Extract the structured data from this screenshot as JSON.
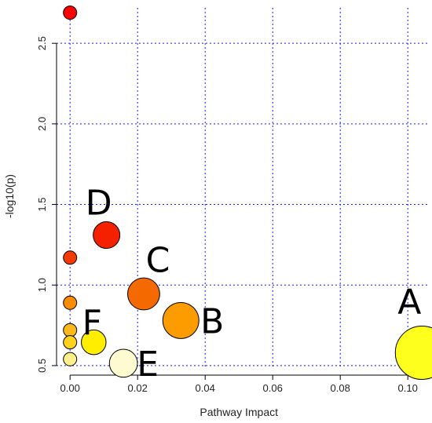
{
  "chart_data": {
    "type": "scatter",
    "xlabel": "Pathway Impact",
    "ylabel": "-log10(p)",
    "xlim": [
      -0.004,
      0.106
    ],
    "ylim": [
      0.48,
      2.72
    ],
    "x_ticks": [
      0.0,
      0.02,
      0.04,
      0.06,
      0.08,
      0.1
    ],
    "x_tick_labels": [
      "0.00",
      "0.02",
      "0.04",
      "0.06",
      "0.08",
      "0.10"
    ],
    "y_ticks": [
      0.5,
      1.0,
      1.5,
      2.0,
      2.5
    ],
    "y_tick_labels": [
      "0.5",
      "1.0",
      "1.5",
      "2.0",
      "2.5"
    ],
    "grid": true,
    "points": [
      {
        "label": "",
        "x": 0.0,
        "y": 2.69,
        "size": 1.0,
        "color": "#ff0000"
      },
      {
        "label": "",
        "x": 0.0,
        "y": 1.17,
        "size": 1.0,
        "color": "#f43a00"
      },
      {
        "label": "",
        "x": 0.0,
        "y": 0.89,
        "size": 1.0,
        "color": "#f98c00"
      },
      {
        "label": "",
        "x": 0.0,
        "y": 0.72,
        "size": 1.0,
        "color": "#ffb81a"
      },
      {
        "label": "",
        "x": 0.0,
        "y": 0.645,
        "size": 1.0,
        "color": "#ffd21e"
      },
      {
        "label": "",
        "x": 0.0,
        "y": 0.54,
        "size": 1.0,
        "color": "#fff08c"
      },
      {
        "label": "D",
        "x": 0.0108,
        "y": 1.31,
        "size": 2.0,
        "color": "#f42000"
      },
      {
        "label": "C",
        "x": 0.0218,
        "y": 0.945,
        "size": 2.4,
        "color": "#f56a00"
      },
      {
        "label": "B",
        "x": 0.0328,
        "y": 0.78,
        "size": 2.7,
        "color": "#fd9c00"
      },
      {
        "label": "F",
        "x": 0.007,
        "y": 0.645,
        "size": 1.85,
        "color": "#ffee00"
      },
      {
        "label": "E",
        "x": 0.0158,
        "y": 0.515,
        "size": 2.1,
        "color": "#fffbd0"
      },
      {
        "label": "A",
        "x": 0.1042,
        "y": 0.58,
        "size": 4.0,
        "color": "#ffff1e"
      }
    ]
  }
}
